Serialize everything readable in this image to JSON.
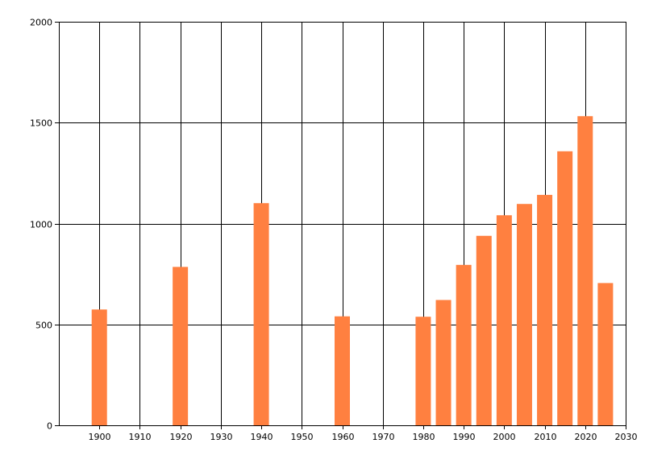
{
  "chart_data": {
    "type": "bar",
    "title": "",
    "xlabel": "",
    "ylabel": "",
    "xlim": [
      1890,
      2030
    ],
    "ylim": [
      0,
      2000
    ],
    "x_ticks": [
      1900,
      1910,
      1920,
      1930,
      1940,
      1950,
      1960,
      1970,
      1980,
      1990,
      2000,
      2010,
      2020,
      2030
    ],
    "y_ticks": [
      0,
      500,
      1000,
      1500,
      2000
    ],
    "grid": true,
    "legend": "none",
    "bar_color": "#ff8040",
    "series": [
      {
        "x": [
          1900,
          1920,
          1940,
          1960,
          1980,
          1985,
          1990,
          1995,
          2000,
          2005,
          2010,
          2015,
          2020,
          2025
        ],
        "values": [
          574,
          785,
          1101,
          540,
          538,
          621,
          795,
          939,
          1041,
          1097,
          1142,
          1358,
          1532,
          705
        ]
      }
    ]
  }
}
